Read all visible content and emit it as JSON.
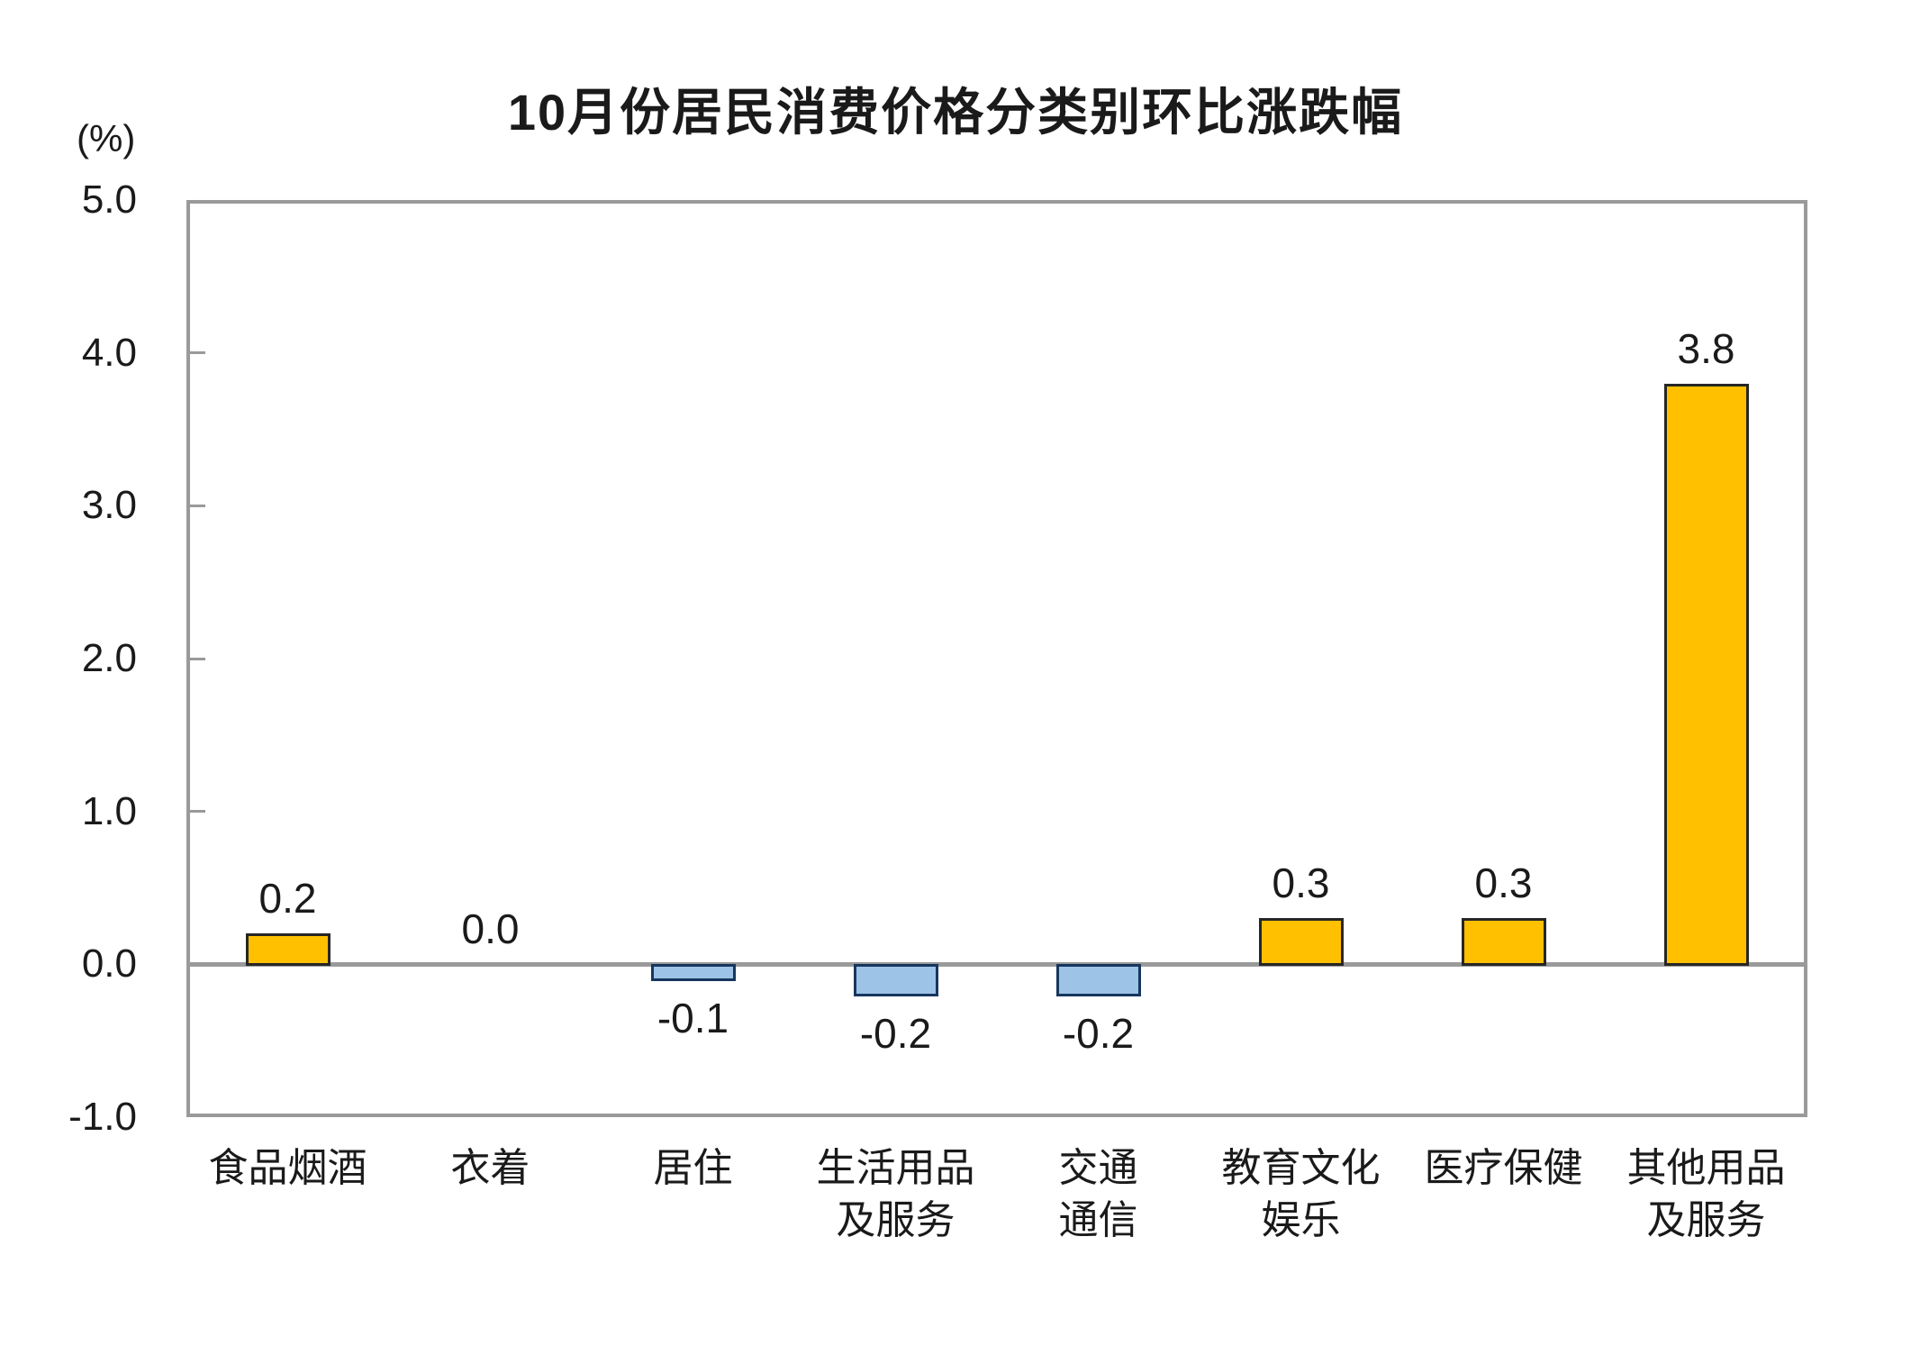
{
  "chart_data": {
    "type": "bar",
    "title": "10月份居民消费价格分类别环比涨跌幅",
    "unit_label": "(%)",
    "categories": [
      "食品烟酒",
      "衣着",
      "居住",
      "生活用品及服务",
      "交通通信",
      "教育文化娱乐",
      "医疗保健",
      "其他用品及服务"
    ],
    "category_lines": [
      [
        "食品烟酒"
      ],
      [
        "衣着"
      ],
      [
        "居住"
      ],
      [
        "生活用品",
        "及服务"
      ],
      [
        "交通",
        "通信"
      ],
      [
        "教育文化",
        "娱乐"
      ],
      [
        "医疗保健"
      ],
      [
        "其他用品",
        "及服务"
      ]
    ],
    "values": [
      0.2,
      0.0,
      -0.1,
      -0.2,
      -0.2,
      0.3,
      0.3,
      3.8
    ],
    "value_labels": [
      "0.2",
      "0.0",
      "-0.1",
      "-0.2",
      "-0.2",
      "0.3",
      "0.3",
      "3.8"
    ],
    "y_ticks": [
      5.0,
      4.0,
      3.0,
      2.0,
      1.0,
      0.0,
      -1.0
    ],
    "y_tick_labels": [
      "5.0",
      "4.0",
      "3.0",
      "2.0",
      "1.0",
      "0.0",
      "-1.0"
    ],
    "ylim": [
      -1.0,
      5.0
    ],
    "grid": false,
    "legend": "none",
    "colors": {
      "positive_fill": "#FFC000",
      "positive_border": "#262626",
      "negative_fill": "#9DC3E6",
      "negative_border": "#17365D",
      "axis_line": "#9A9A9A",
      "text": "#000000"
    }
  }
}
